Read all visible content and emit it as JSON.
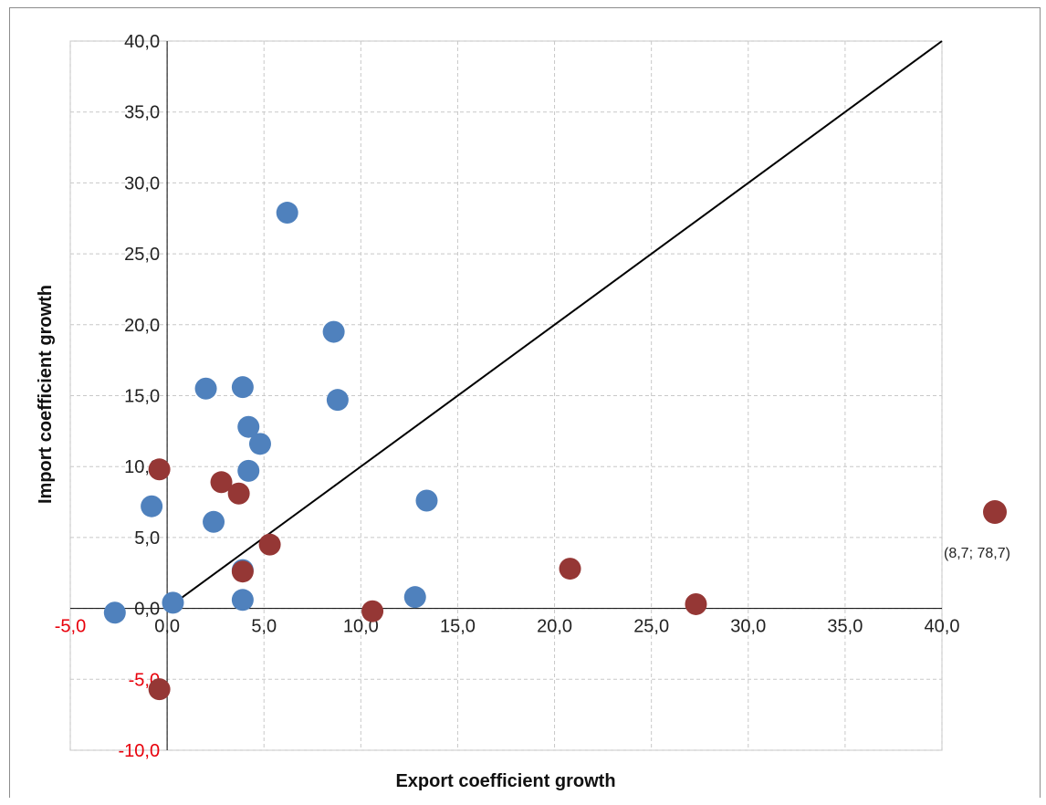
{
  "chart_data": {
    "type": "scatter",
    "title": "",
    "xlabel": "Export coefficient growth",
    "ylabel": "Import coefficient growth",
    "xlim": [
      -5,
      40
    ],
    "ylim": [
      -10,
      40
    ],
    "x_ticks": [
      "-5,0",
      "0,0",
      "5,0",
      "10,0",
      "15,0",
      "20,0",
      "25,0",
      "30,0",
      "35,0",
      "40,0"
    ],
    "y_ticks": [
      "-10,0",
      "-5,0",
      "0,0",
      "5,0",
      "10,0",
      "15,0",
      "20,0",
      "25,0",
      "30,0",
      "35,0",
      "40,0"
    ],
    "negative_tick_color": "#e8000b",
    "grid": true,
    "grid_style": "dashed",
    "legend": "none",
    "reference_line": {
      "type": "diagonal",
      "x": [
        0,
        40
      ],
      "y": [
        0,
        40
      ],
      "color": "#000000"
    },
    "series": [
      {
        "color": "#4f81bd",
        "points": [
          [
            6.2,
            27.9
          ],
          [
            8.6,
            19.5
          ],
          [
            2.0,
            15.5
          ],
          [
            3.9,
            15.6
          ],
          [
            8.8,
            14.7
          ],
          [
            4.2,
            12.8
          ],
          [
            4.8,
            11.6
          ],
          [
            4.2,
            9.7
          ],
          [
            13.4,
            7.6
          ],
          [
            -0.8,
            7.2
          ],
          [
            2.4,
            6.1
          ],
          [
            3.9,
            2.7
          ],
          [
            3.9,
            0.6
          ],
          [
            12.8,
            0.8
          ],
          [
            0.3,
            0.4
          ],
          [
            -2.7,
            -0.3
          ]
        ]
      },
      {
        "color": "#953735",
        "points": [
          [
            -0.4,
            9.8
          ],
          [
            2.8,
            8.9
          ],
          [
            3.7,
            8.1
          ],
          [
            5.3,
            4.5
          ],
          [
            3.9,
            2.6
          ],
          [
            10.6,
            -0.2
          ],
          [
            20.8,
            2.8
          ],
          [
            27.3,
            0.3
          ],
          [
            -0.4,
            -5.7
          ]
        ],
        "off_scale_point": {
          "label": "(8,7; 78,7)"
        }
      }
    ]
  }
}
